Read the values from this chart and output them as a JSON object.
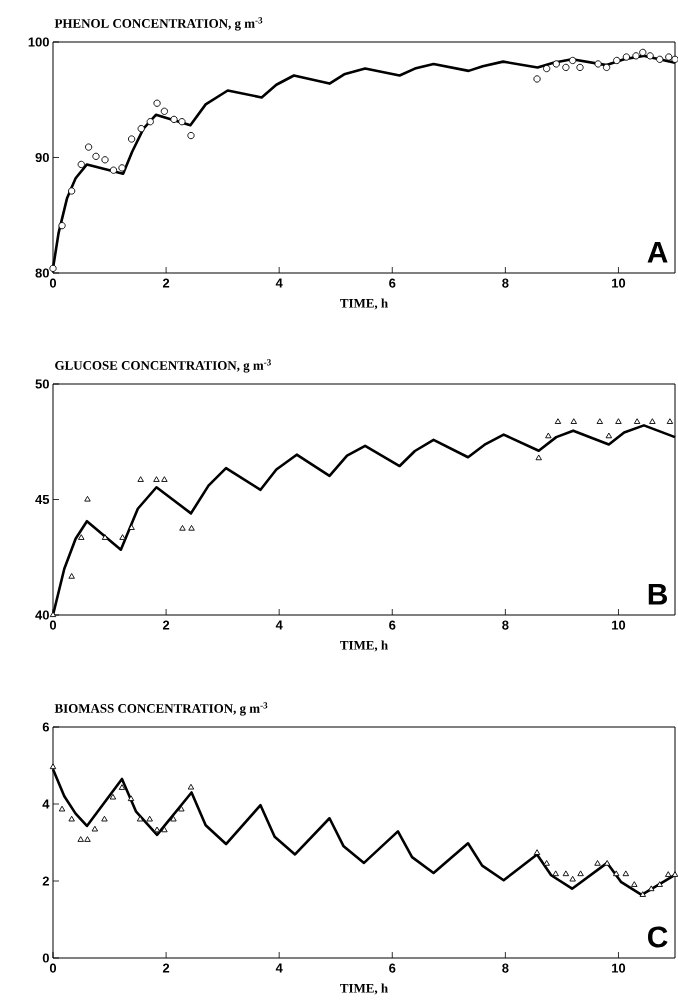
{
  "chart_data": [
    {
      "type": "line",
      "title": "PHENOL CONCENTRATION, g m$^{-3}$",
      "xlabel": "TIME, h",
      "xlim": [
        0,
        11
      ],
      "xticks": [
        0,
        2,
        4,
        6,
        8,
        10
      ],
      "ylim": [
        80,
        100
      ],
      "yticks": [
        80,
        90,
        100
      ],
      "annotations": [
        "A"
      ],
      "series": [
        {
          "color": "#000000",
          "marker": "none",
          "line_style": "solid",
          "x": [
            0,
            0.1,
            0.25,
            0.4,
            0.6,
            1.24,
            1.4,
            1.6,
            1.82,
            2.43,
            2.7,
            3.09,
            3.69,
            3.95,
            4.26,
            4.89,
            5.15,
            5.52,
            6.13,
            6.4,
            6.73,
            7.35,
            7.6,
            7.96,
            8.57,
            8.85,
            9.18,
            9.79,
            10.1,
            10.44,
            11.0
          ],
          "values": [
            80.4,
            83.5,
            86.5,
            88.2,
            89.4,
            88.6,
            90.5,
            92.5,
            93.7,
            92.8,
            94.6,
            95.8,
            95.2,
            96.3,
            97.1,
            96.4,
            97.2,
            97.7,
            97.1,
            97.7,
            98.1,
            97.5,
            97.9,
            98.3,
            97.8,
            98.2,
            98.5,
            98.0,
            98.5,
            98.8,
            98.2
          ]
        },
        {
          "type": "scatter",
          "color": "#000000",
          "marker": "circle",
          "x": [
            0,
            0.16,
            0.33,
            0.5,
            0.63,
            0.76,
            0.92,
            1.07,
            1.22,
            1.39,
            1.56,
            1.72,
            1.84,
            1.97,
            2.14,
            2.28,
            2.44,
            8.56,
            8.73,
            8.9,
            9.07,
            9.19,
            9.32,
            9.64,
            9.79,
            9.97,
            10.14,
            10.31,
            10.43,
            10.56,
            10.73,
            10.89,
            11.0
          ],
          "values": [
            80.4,
            84.1,
            87.1,
            89.4,
            90.9,
            90.1,
            89.8,
            88.9,
            89.1,
            91.6,
            92.5,
            93.1,
            94.7,
            94.0,
            93.3,
            93.1,
            91.9,
            96.8,
            97.7,
            98.1,
            97.8,
            98.4,
            97.8,
            98.1,
            97.8,
            98.4,
            98.7,
            98.8,
            99.1,
            98.8,
            98.5,
            98.7,
            98.5
          ]
        }
      ]
    },
    {
      "type": "line",
      "title": "GLUCOSE CONCENTRATION, g m$^{-3}$",
      "xlabel": "TIME, h",
      "xlim": [
        0,
        11
      ],
      "xticks": [
        0,
        2,
        4,
        6,
        8,
        10
      ],
      "ylim": [
        40,
        50
      ],
      "yticks": [
        40,
        45,
        50
      ],
      "annotations": [
        "B"
      ],
      "series": [
        {
          "color": "#000000",
          "marker": "none",
          "line_style": "solid",
          "x": [
            0,
            0.2,
            0.4,
            0.6,
            1.2,
            1.5,
            1.83,
            2.44,
            2.75,
            3.06,
            3.67,
            3.95,
            4.31,
            4.89,
            5.2,
            5.52,
            6.13,
            6.4,
            6.73,
            7.34,
            7.65,
            7.97,
            8.59,
            8.9,
            9.2,
            9.83,
            10.1,
            10.45,
            11.0
          ],
          "values": [
            40,
            42.0,
            43.3,
            44.06,
            42.83,
            44.6,
            45.53,
            44.4,
            45.6,
            46.36,
            45.42,
            46.3,
            46.94,
            46.02,
            46.9,
            47.32,
            46.45,
            47.1,
            47.58,
            46.83,
            47.4,
            47.81,
            47.11,
            47.7,
            47.98,
            47.38,
            47.9,
            48.21,
            47.7
          ]
        },
        {
          "type": "scatter",
          "color": "#000000",
          "marker": "triangle",
          "x": [
            0,
            0.33,
            0.5,
            0.61,
            0.92,
            1.23,
            1.39,
            1.55,
            1.83,
            1.97,
            2.29,
            2.45,
            8.59,
            8.76,
            8.93,
            9.21,
            9.67,
            9.83,
            10.0,
            10.33,
            10.6,
            10.91
          ],
          "values": [
            40,
            41.66,
            43.34,
            45.0,
            43.34,
            43.34,
            43.77,
            45.85,
            45.85,
            45.85,
            43.74,
            43.74,
            46.79,
            47.74,
            48.36,
            48.36,
            48.36,
            47.74,
            48.36,
            48.36,
            48.36,
            48.36
          ]
        }
      ]
    },
    {
      "type": "line",
      "title": "BIOMASS CONCENTRATION, g m$^{-3}$",
      "xlabel": "TIME, h",
      "xlim": [
        0,
        11
      ],
      "xticks": [
        0,
        2,
        4,
        6,
        8,
        10
      ],
      "ylim": [
        0,
        6
      ],
      "yticks": [
        0,
        2,
        4,
        6
      ],
      "annotations": [
        "C"
      ],
      "series": [
        {
          "color": "#000000",
          "marker": "none",
          "line_style": "solid",
          "x": [
            0,
            0.2,
            0.4,
            0.6,
            1.22,
            1.47,
            1.84,
            2.45,
            2.7,
            3.06,
            3.67,
            3.92,
            4.28,
            4.89,
            5.14,
            5.5,
            6.1,
            6.35,
            6.73,
            7.34,
            7.59,
            7.97,
            8.56,
            8.81,
            9.18,
            9.8,
            10.05,
            10.41,
            11.0
          ],
          "values": [
            4.9,
            4.2,
            3.75,
            3.43,
            4.65,
            3.8,
            3.2,
            4.3,
            3.45,
            2.96,
            3.97,
            3.15,
            2.69,
            3.63,
            2.9,
            2.47,
            3.29,
            2.62,
            2.21,
            2.98,
            2.4,
            2.02,
            2.69,
            2.15,
            1.8,
            2.47,
            1.97,
            1.64,
            2.16
          ]
        },
        {
          "type": "scatter",
          "color": "#000000",
          "marker": "triangle",
          "x": [
            0,
            0.16,
            0.33,
            0.49,
            0.61,
            0.74,
            0.91,
            1.06,
            1.22,
            1.38,
            1.54,
            1.71,
            1.84,
            1.97,
            2.13,
            2.27,
            2.44,
            8.56,
            8.73,
            8.89,
            9.07,
            9.19,
            9.33,
            9.63,
            9.8,
            9.96,
            10.13,
            10.28,
            10.43,
            10.58,
            10.73,
            10.88,
            11.0
          ],
          "values": [
            4.96,
            3.86,
            3.6,
            3.07,
            3.07,
            3.34,
            3.6,
            4.17,
            4.42,
            4.13,
            3.6,
            3.6,
            3.32,
            3.32,
            3.6,
            3.86,
            4.43,
            2.73,
            2.45,
            2.18,
            2.18,
            2.04,
            2.18,
            2.45,
            2.45,
            2.18,
            2.18,
            1.9,
            1.64,
            1.79,
            1.9,
            2.16,
            2.16
          ]
        }
      ]
    }
  ]
}
